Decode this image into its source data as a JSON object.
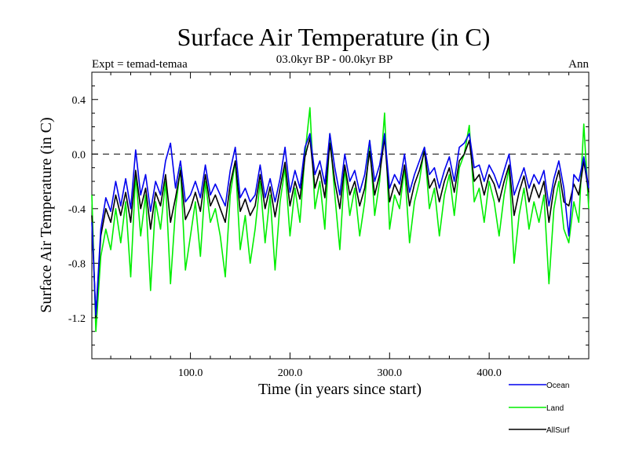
{
  "chart_data": {
    "type": "line",
    "title": "Surface Air Temperature (in C)",
    "subtitle": "03.0kyr BP - 00.0kyr BP",
    "top_left_label": "Expt = temad-temaa",
    "top_right_label": "Ann",
    "xlabel": "Time (in years since start)",
    "ylabel": "Surface Air Temperature (in C)",
    "xlim": [
      1,
      500
    ],
    "ylim": [
      -1.5,
      0.6
    ],
    "x_ticks": [
      100,
      200,
      300,
      400
    ],
    "x_tick_labels": [
      "100.0",
      "200.0",
      "300.0",
      "400.0"
    ],
    "y_ticks": [
      -1.2,
      -0.8,
      -0.4,
      0.0,
      0.4
    ],
    "y_tick_labels": [
      "-1.2",
      "-0.8",
      "-0.4",
      "0.0",
      "0.4"
    ],
    "reference_line": 0.0,
    "legend_position": "bottom-right",
    "series": [
      {
        "name": "Land",
        "color": "#00ee00",
        "x": [
          1,
          5,
          10,
          15,
          20,
          25,
          30,
          35,
          40,
          45,
          50,
          55,
          60,
          65,
          70,
          75,
          80,
          85,
          90,
          95,
          100,
          105,
          110,
          115,
          120,
          125,
          130,
          135,
          140,
          145,
          150,
          155,
          160,
          165,
          170,
          175,
          180,
          185,
          190,
          195,
          200,
          205,
          210,
          215,
          220,
          225,
          230,
          235,
          240,
          245,
          250,
          255,
          260,
          265,
          270,
          275,
          280,
          285,
          290,
          295,
          300,
          305,
          310,
          315,
          320,
          325,
          330,
          335,
          340,
          345,
          350,
          355,
          360,
          365,
          370,
          375,
          380,
          385,
          390,
          395,
          400,
          405,
          410,
          415,
          420,
          425,
          430,
          435,
          440,
          445,
          450,
          455,
          460,
          465,
          470,
          475,
          480,
          485,
          490,
          495,
          500
        ],
        "values": [
          -0.3,
          -1.3,
          -0.75,
          -0.55,
          -0.7,
          -0.4,
          -0.65,
          -0.35,
          -0.9,
          -0.15,
          -0.6,
          -0.3,
          -1.0,
          -0.35,
          -0.55,
          -0.2,
          -0.95,
          -0.4,
          -0.1,
          -0.85,
          -0.6,
          -0.35,
          -0.75,
          -0.2,
          -0.5,
          -0.4,
          -0.6,
          -0.9,
          -0.3,
          -0.05,
          -0.7,
          -0.45,
          -0.8,
          -0.55,
          -0.2,
          -0.65,
          -0.3,
          -0.85,
          -0.35,
          -0.1,
          -0.6,
          -0.25,
          -0.5,
          0.0,
          0.34,
          -0.4,
          -0.2,
          -0.55,
          0.15,
          -0.3,
          -0.7,
          -0.1,
          -0.45,
          -0.25,
          -0.6,
          -0.35,
          0.1,
          -0.45,
          -0.2,
          0.3,
          -0.55,
          -0.3,
          -0.4,
          -0.1,
          -0.65,
          -0.35,
          -0.2,
          0.05,
          -0.4,
          -0.25,
          -0.6,
          -0.3,
          -0.15,
          -0.45,
          -0.1,
          0.0,
          0.21,
          -0.35,
          -0.25,
          -0.5,
          -0.2,
          -0.35,
          -0.6,
          -0.3,
          -0.1,
          -0.8,
          -0.45,
          -0.25,
          -0.55,
          -0.35,
          -0.5,
          -0.3,
          -0.95,
          -0.4,
          -0.2,
          -0.55,
          -0.65,
          -0.35,
          -0.5,
          0.22,
          -0.4
        ]
      },
      {
        "name": "AllSurf",
        "color": "#000000",
        "x": [
          1,
          5,
          10,
          15,
          20,
          25,
          30,
          35,
          40,
          45,
          50,
          55,
          60,
          65,
          70,
          75,
          80,
          85,
          90,
          95,
          100,
          105,
          110,
          115,
          120,
          125,
          130,
          135,
          140,
          145,
          150,
          155,
          160,
          165,
          170,
          175,
          180,
          185,
          190,
          195,
          200,
          205,
          210,
          215,
          220,
          225,
          230,
          235,
          240,
          245,
          250,
          255,
          260,
          265,
          270,
          275,
          280,
          285,
          290,
          295,
          300,
          305,
          310,
          315,
          320,
          325,
          330,
          335,
          340,
          345,
          350,
          355,
          360,
          365,
          370,
          375,
          380,
          385,
          390,
          395,
          400,
          405,
          410,
          415,
          420,
          425,
          430,
          435,
          440,
          445,
          450,
          455,
          460,
          465,
          470,
          475,
          480,
          485,
          490,
          495,
          500
        ],
        "values": [
          -0.45,
          -1.2,
          -0.6,
          -0.4,
          -0.5,
          -0.3,
          -0.45,
          -0.28,
          -0.5,
          -0.12,
          -0.4,
          -0.25,
          -0.55,
          -0.28,
          -0.38,
          -0.15,
          -0.5,
          -0.32,
          -0.12,
          -0.48,
          -0.4,
          -0.28,
          -0.42,
          -0.15,
          -0.38,
          -0.3,
          -0.4,
          -0.5,
          -0.22,
          -0.05,
          -0.42,
          -0.33,
          -0.45,
          -0.38,
          -0.15,
          -0.4,
          -0.24,
          -0.46,
          -0.25,
          -0.06,
          -0.38,
          -0.2,
          -0.33,
          -0.02,
          0.12,
          -0.25,
          -0.12,
          -0.32,
          0.08,
          -0.2,
          -0.4,
          -0.08,
          -0.3,
          -0.2,
          -0.38,
          -0.25,
          0.02,
          -0.3,
          -0.15,
          0.12,
          -0.35,
          -0.22,
          -0.3,
          -0.08,
          -0.38,
          -0.22,
          -0.12,
          0.02,
          -0.25,
          -0.18,
          -0.35,
          -0.2,
          -0.1,
          -0.28,
          -0.05,
          0.0,
          0.1,
          -0.2,
          -0.15,
          -0.3,
          -0.15,
          -0.22,
          -0.35,
          -0.2,
          -0.08,
          -0.45,
          -0.28,
          -0.16,
          -0.35,
          -0.22,
          -0.32,
          -0.2,
          -0.5,
          -0.25,
          -0.12,
          -0.35,
          -0.38,
          -0.22,
          -0.3,
          -0.05,
          -0.28
        ]
      },
      {
        "name": "Ocean",
        "color": "#0000ee",
        "x": [
          1,
          5,
          10,
          15,
          20,
          25,
          30,
          35,
          40,
          45,
          50,
          55,
          60,
          65,
          70,
          75,
          80,
          85,
          90,
          95,
          100,
          105,
          110,
          115,
          120,
          125,
          130,
          135,
          140,
          145,
          150,
          155,
          160,
          165,
          170,
          175,
          180,
          185,
          190,
          195,
          200,
          205,
          210,
          215,
          220,
          225,
          230,
          235,
          240,
          245,
          250,
          255,
          260,
          265,
          270,
          275,
          280,
          285,
          290,
          295,
          300,
          305,
          310,
          315,
          320,
          325,
          330,
          335,
          340,
          345,
          350,
          355,
          360,
          365,
          370,
          375,
          380,
          385,
          390,
          395,
          400,
          405,
          410,
          415,
          420,
          425,
          430,
          435,
          440,
          445,
          450,
          455,
          460,
          465,
          470,
          475,
          480,
          485,
          490,
          495,
          500
        ],
        "values": [
          -0.5,
          -1.18,
          -0.55,
          -0.32,
          -0.42,
          -0.2,
          -0.38,
          -0.18,
          -0.4,
          0.03,
          -0.3,
          -0.15,
          -0.42,
          -0.2,
          -0.3,
          -0.05,
          0.08,
          -0.25,
          -0.05,
          -0.35,
          -0.3,
          -0.2,
          -0.32,
          -0.08,
          -0.3,
          -0.22,
          -0.3,
          -0.38,
          -0.12,
          0.05,
          -0.32,
          -0.25,
          -0.35,
          -0.3,
          -0.08,
          -0.32,
          -0.18,
          -0.35,
          -0.18,
          0.05,
          -0.28,
          -0.12,
          -0.25,
          0.05,
          0.15,
          -0.15,
          -0.05,
          -0.22,
          0.15,
          -0.1,
          -0.3,
          0.0,
          -0.2,
          -0.12,
          -0.28,
          -0.15,
          0.1,
          -0.2,
          -0.08,
          0.15,
          -0.25,
          -0.15,
          -0.22,
          0.0,
          -0.28,
          -0.15,
          -0.05,
          0.05,
          -0.15,
          -0.1,
          -0.25,
          -0.12,
          -0.02,
          -0.2,
          0.05,
          0.08,
          0.15,
          -0.1,
          -0.08,
          -0.2,
          -0.08,
          -0.15,
          -0.25,
          -0.12,
          0.0,
          -0.3,
          -0.2,
          -0.1,
          -0.25,
          -0.15,
          -0.22,
          -0.12,
          -0.38,
          -0.18,
          -0.05,
          -0.25,
          -0.6,
          -0.15,
          -0.2,
          -0.02,
          -0.25
        ]
      }
    ],
    "legend_order": [
      "Ocean",
      "Land",
      "AllSurf"
    ]
  }
}
